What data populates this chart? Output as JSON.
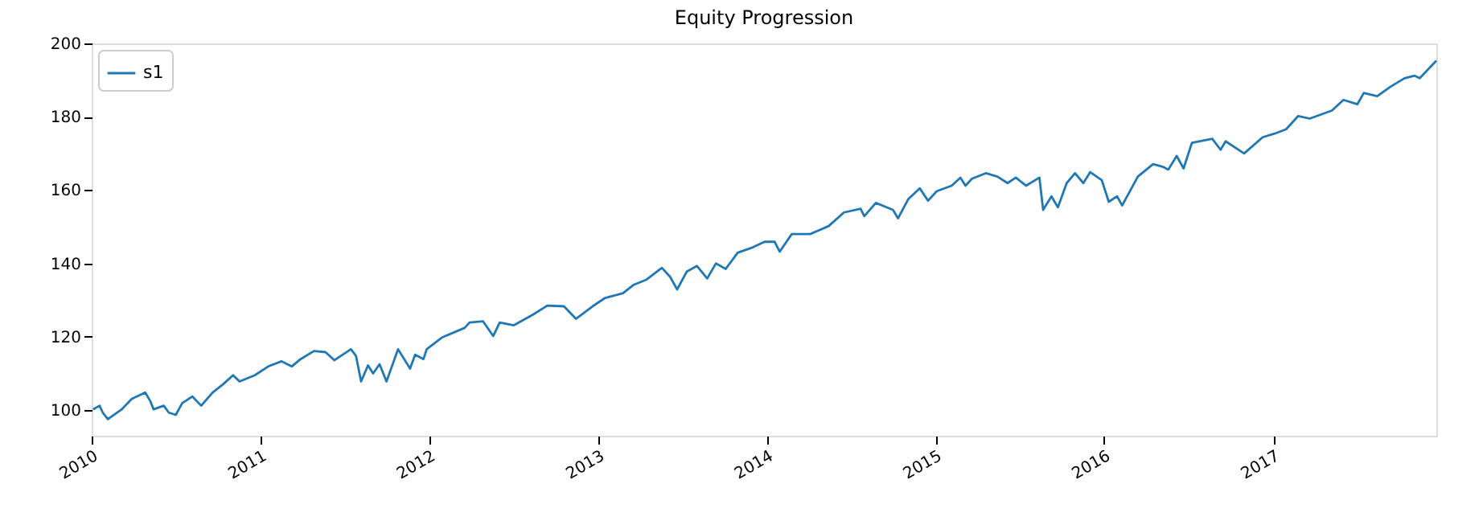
{
  "chart_data": {
    "type": "line",
    "title": "Equity Progression",
    "x": [
      "2010-01-04",
      "2010-01-18",
      "2010-01-25",
      "2010-02-05",
      "2010-03-07",
      "2010-03-29",
      "2010-04-27",
      "2010-05-08",
      "2010-05-15",
      "2010-06-06",
      "2010-06-17",
      "2010-07-02",
      "2010-07-16",
      "2010-08-07",
      "2010-08-26",
      "2010-09-20",
      "2010-10-12",
      "2010-11-03",
      "2010-11-17",
      "2010-12-20",
      "2011-01-18",
      "2011-02-16",
      "2011-03-10",
      "2011-03-29",
      "2011-04-27",
      "2011-05-22",
      "2011-06-10",
      "2011-07-16",
      "2011-07-27",
      "2011-08-07",
      "2011-08-22",
      "2011-09-02",
      "2011-09-16",
      "2011-10-01",
      "2011-10-26",
      "2011-11-21",
      "2011-12-02",
      "2011-12-20",
      "2011-12-27",
      "2012-01-29",
      "2012-03-18",
      "2012-03-29",
      "2012-04-27",
      "2012-05-19",
      "2012-06-02",
      "2012-07-02",
      "2012-08-14",
      "2012-09-13",
      "2012-10-19",
      "2012-11-14",
      "2012-12-20",
      "2013-01-15",
      "2013-02-24",
      "2013-03-18",
      "2013-04-16",
      "2013-05-19",
      "2013-06-06",
      "2013-06-21",
      "2013-07-12",
      "2013-08-03",
      "2013-08-25",
      "2013-09-13",
      "2013-10-04",
      "2013-10-30",
      "2013-12-02",
      "2013-12-27",
      "2014-01-18",
      "2014-01-29",
      "2014-02-24",
      "2014-04-05",
      "2014-05-15",
      "2014-06-17",
      "2014-07-23",
      "2014-07-31",
      "2014-08-25",
      "2014-10-01",
      "2014-10-12",
      "2014-11-03",
      "2014-11-28",
      "2014-12-16",
      "2015-01-04",
      "2015-02-05",
      "2015-02-24",
      "2015-03-07",
      "2015-03-21",
      "2015-04-20",
      "2015-05-15",
      "2015-06-06",
      "2015-06-24",
      "2015-07-16",
      "2015-08-14",
      "2015-08-22",
      "2015-09-09",
      "2015-09-23",
      "2015-10-12",
      "2015-10-30",
      "2015-11-17",
      "2015-12-02",
      "2015-12-27",
      "2016-01-11",
      "2016-01-29",
      "2016-02-09",
      "2016-03-14",
      "2016-04-16",
      "2016-05-08",
      "2016-05-19",
      "2016-06-06",
      "2016-06-21",
      "2016-07-09",
      "2016-08-22",
      "2016-09-09",
      "2016-09-20",
      "2016-10-30",
      "2016-12-09",
      "2017-01-04",
      "2017-01-29",
      "2017-02-24",
      "2017-03-21",
      "2017-05-08",
      "2017-06-02",
      "2017-07-02",
      "2017-07-16",
      "2017-08-14",
      "2017-09-13",
      "2017-10-12",
      "2017-11-03",
      "2017-11-14",
      "2017-12-20"
    ],
    "series": [
      {
        "name": "s1",
        "color": "#1f77b4",
        "values": [
          100.2,
          101.2,
          99.3,
          97.5,
          100.2,
          103.1,
          104.8,
          102.4,
          100.2,
          101.2,
          99.3,
          98.7,
          101.9,
          103.7,
          101.2,
          104.8,
          107.0,
          109.5,
          107.8,
          109.5,
          111.9,
          113.3,
          111.9,
          113.9,
          116.1,
          115.8,
          113.6,
          116.6,
          114.8,
          107.8,
          112.2,
          110.0,
          112.5,
          107.8,
          116.6,
          111.3,
          115.1,
          113.9,
          116.6,
          119.8,
          122.4,
          123.9,
          124.2,
          120.2,
          123.9,
          123.1,
          126.1,
          128.5,
          128.3,
          124.9,
          128.3,
          130.5,
          131.9,
          134.1,
          135.6,
          138.8,
          136.3,
          132.9,
          137.8,
          139.3,
          135.9,
          140.0,
          138.5,
          142.9,
          144.4,
          145.9,
          145.9,
          143.2,
          148.0,
          148.0,
          150.2,
          153.9,
          154.9,
          152.9,
          156.5,
          154.6,
          152.3,
          157.5,
          160.5,
          157.1,
          159.7,
          161.2,
          163.4,
          161.2,
          163.1,
          164.6,
          163.7,
          161.9,
          163.4,
          161.2,
          163.4,
          154.6,
          158.3,
          155.3,
          161.9,
          164.6,
          161.9,
          164.9,
          162.7,
          156.8,
          158.3,
          155.8,
          163.7,
          167.1,
          166.3,
          165.6,
          169.3,
          165.9,
          172.9,
          174.0,
          171.0,
          173.3,
          170.0,
          174.4,
          175.4,
          176.6,
          180.2,
          179.5,
          181.7,
          184.6,
          183.4,
          186.5,
          185.6,
          188.3,
          190.5,
          191.2,
          190.5,
          195.3
        ]
      }
    ],
    "xlim": [
      "2010-01-01",
      "2017-12-20"
    ],
    "xticks": [
      "2010",
      "2011",
      "2012",
      "2013",
      "2014",
      "2015",
      "2016",
      "2017"
    ],
    "ylim": [
      93,
      200
    ],
    "yticks": [
      100,
      120,
      140,
      160,
      180,
      200
    ],
    "legend": "top left",
    "grid": false,
    "line_style": "solid",
    "marker": "none"
  }
}
